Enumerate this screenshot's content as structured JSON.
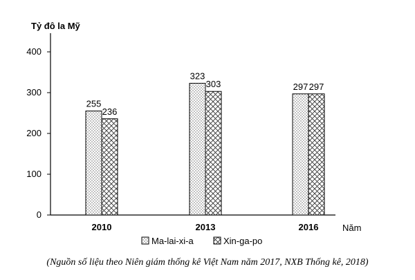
{
  "chart_data": {
    "type": "bar",
    "ylabel": "Tỷ đô la Mỹ",
    "xlabel": "Năm",
    "categories": [
      "2010",
      "2013",
      "2016"
    ],
    "series": [
      {
        "name": "Ma-lai-xi-a",
        "values": [
          255,
          323,
          297
        ],
        "pattern": "dots"
      },
      {
        "name": "Xin-ga-po",
        "values": [
          236,
          303,
          297
        ],
        "pattern": "crosshatch"
      }
    ],
    "yticks": [
      "0",
      "100",
      "200",
      "300",
      "400"
    ],
    "ylim": [
      0,
      400
    ],
    "grid": false,
    "legend": "bottom-center"
  },
  "source_note": "(Nguồn số liệu theo Niên giám thống kê Việt Nam năm 2017, NXB Thống kê, 2018)",
  "colors": {
    "axis": "#000000",
    "bar_border": "#000000"
  }
}
